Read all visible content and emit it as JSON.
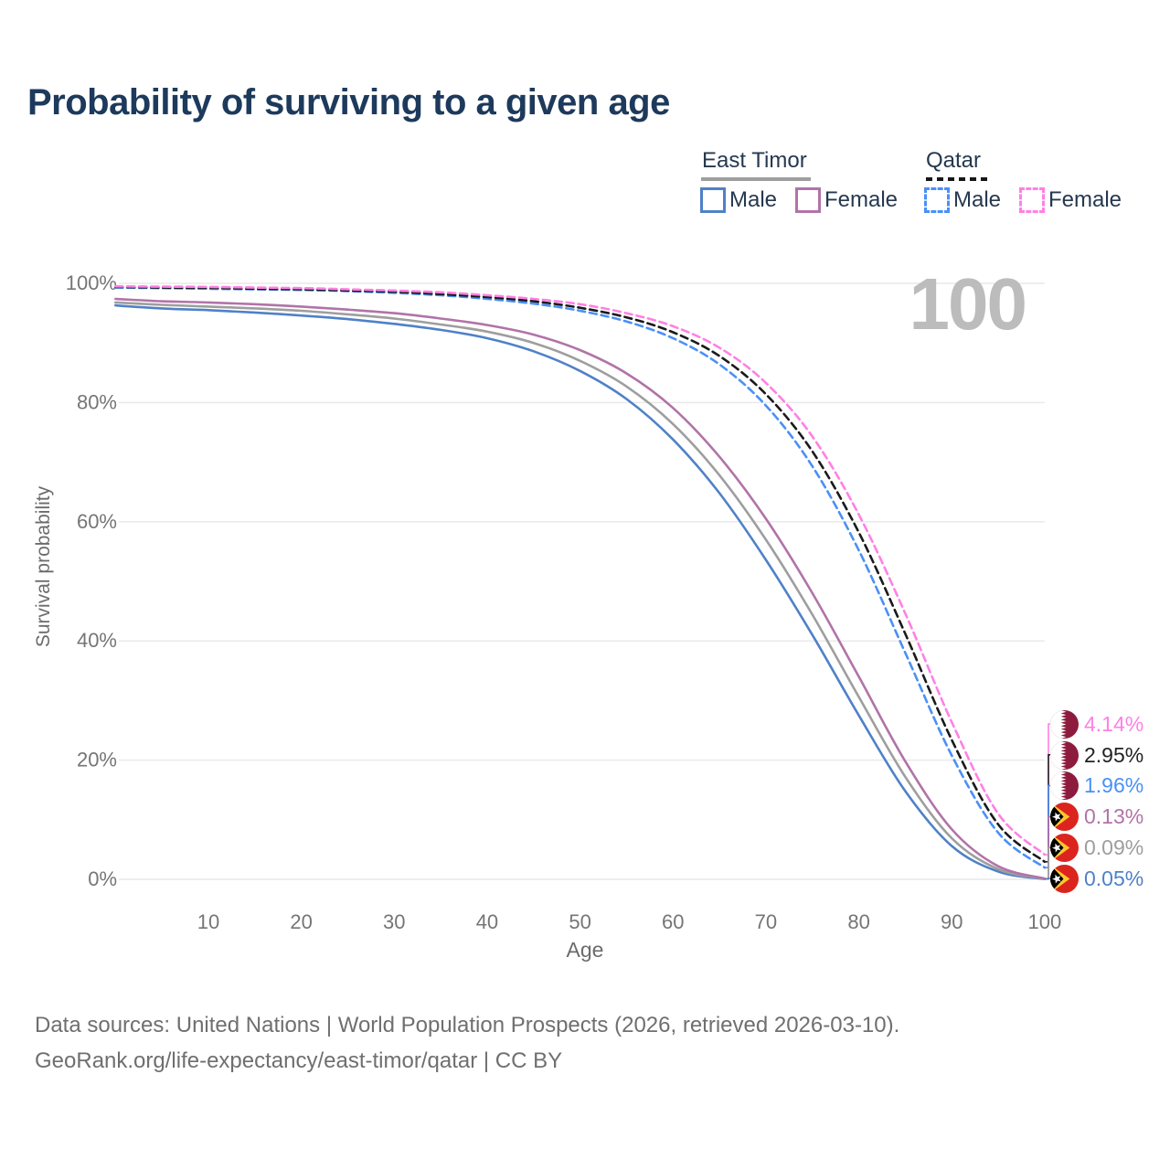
{
  "title": "Probability of surviving to a given age",
  "watermark_age": "100",
  "legend": {
    "groups": [
      {
        "label": "East Timor",
        "line_style": "solid",
        "underline_color": "#9e9e9e",
        "items": [
          {
            "label": "Male",
            "color": "#4f81c7"
          },
          {
            "label": "Female",
            "color": "#b173a8"
          }
        ]
      },
      {
        "label": "Qatar",
        "line_style": "dashed",
        "underline_color": "#161616",
        "items": [
          {
            "label": "Male",
            "color": "#4a90f7"
          },
          {
            "label": "Female",
            "color": "#ff80e5"
          }
        ]
      }
    ]
  },
  "axes": {
    "x_title": "Age",
    "y_title": "Survival probability",
    "x_ticks": [
      10,
      20,
      30,
      40,
      50,
      60,
      70,
      80,
      90,
      100
    ],
    "y_ticks": [
      {
        "pct": 0,
        "label": "0%"
      },
      {
        "pct": 20,
        "label": "20%"
      },
      {
        "pct": 40,
        "label": "40%"
      },
      {
        "pct": 60,
        "label": "60%"
      },
      {
        "pct": 80,
        "label": "80%"
      },
      {
        "pct": 100,
        "label": "100%"
      }
    ]
  },
  "chart_data": {
    "type": "line",
    "title": "Probability of surviving to a given age",
    "xlabel": "Age",
    "ylabel": "Survival probability",
    "xlim": [
      0,
      100
    ],
    "ylim": [
      0,
      100
    ],
    "grid": "horizontal",
    "legend_position": "top-right",
    "x": [
      0,
      5,
      10,
      15,
      20,
      25,
      30,
      35,
      40,
      45,
      50,
      55,
      60,
      65,
      70,
      75,
      80,
      85,
      90,
      95,
      100
    ],
    "series": [
      {
        "name": "East Timor Male",
        "country": "East Timor",
        "sex": "Male",
        "color": "#4f81c7",
        "dash": "solid",
        "values": [
          96.3,
          95.8,
          95.5,
          95.1,
          94.6,
          94.0,
          93.2,
          92.2,
          90.8,
          88.6,
          85.3,
          80.6,
          73.8,
          64.8,
          53.6,
          41.0,
          27.5,
          14.8,
          5.6,
          1.3,
          0.05
        ]
      },
      {
        "name": "East Timor Both sexes",
        "country": "East Timor",
        "sex": "Both",
        "color": "#9e9e9e",
        "dash": "solid",
        "values": [
          96.8,
          96.4,
          96.1,
          95.8,
          95.4,
          94.8,
          94.1,
          93.1,
          91.9,
          90.0,
          87.0,
          82.7,
          76.4,
          67.8,
          57.0,
          44.4,
          30.6,
          17.2,
          6.9,
          1.7,
          0.09
        ]
      },
      {
        "name": "East Timor Female",
        "country": "East Timor",
        "sex": "Female",
        "color": "#b173a8",
        "dash": "solid",
        "values": [
          97.4,
          97.0,
          96.8,
          96.5,
          96.1,
          95.6,
          95.0,
          94.1,
          93.0,
          91.4,
          88.8,
          84.9,
          79.1,
          70.9,
          60.5,
          48.0,
          34.0,
          19.8,
          8.4,
          2.2,
          0.13
        ]
      },
      {
        "name": "Qatar Male",
        "country": "Qatar",
        "sex": "Male",
        "color": "#4a90f7",
        "dash": "dashed",
        "values": [
          99.3,
          99.2,
          99.1,
          99.0,
          98.9,
          98.7,
          98.4,
          98.0,
          97.4,
          96.6,
          95.4,
          93.6,
          90.8,
          86.4,
          79.5,
          69.3,
          55.2,
          38.0,
          20.8,
          7.8,
          1.96
        ]
      },
      {
        "name": "Qatar Both sexes",
        "country": "Qatar",
        "sex": "Both",
        "color": "#1a1a1a",
        "dash": "dashed",
        "values": [
          99.4,
          99.3,
          99.25,
          99.1,
          99.0,
          98.8,
          98.6,
          98.2,
          97.7,
          97.0,
          95.9,
          94.3,
          91.8,
          87.8,
          81.4,
          71.8,
          58.2,
          41.2,
          23.4,
          9.2,
          2.95
        ]
      },
      {
        "name": "Qatar Female",
        "country": "Qatar",
        "sex": "Female",
        "color": "#ff80e5",
        "dash": "dashed",
        "values": [
          99.5,
          99.45,
          99.4,
          99.3,
          99.2,
          99.0,
          98.8,
          98.5,
          98.0,
          97.4,
          96.5,
          95.0,
          92.8,
          89.2,
          83.3,
          74.3,
          61.2,
          44.6,
          26.4,
          11.0,
          4.14
        ]
      }
    ]
  },
  "end_labels": [
    {
      "value": "4.14%",
      "pct": 4.14,
      "color": "#ff80e5",
      "flag": "qatar",
      "series": "Qatar Female"
    },
    {
      "value": "2.95%",
      "pct": 2.95,
      "color": "#222222",
      "flag": "qatar",
      "series": "Qatar Both sexes"
    },
    {
      "value": "1.96%",
      "pct": 1.96,
      "color": "#4a90f7",
      "flag": "qatar",
      "series": "Qatar Male"
    },
    {
      "value": "0.13%",
      "pct": 0.13,
      "color": "#b173a8",
      "flag": "east-timor",
      "series": "East Timor Female"
    },
    {
      "value": "0.09%",
      "pct": 0.09,
      "color": "#9e9e9e",
      "flag": "east-timor",
      "series": "East Timor Both sexes"
    },
    {
      "value": "0.05%",
      "pct": 0.05,
      "color": "#4f81c7",
      "flag": "east-timor",
      "series": "East Timor Male"
    }
  ],
  "footer": {
    "line1": "Data sources: United Nations | World Population Prospects (2026, retrieved 2026-03-10).",
    "line2": "GeoRank.org/life-expectancy/east-timor/qatar | CC BY"
  }
}
